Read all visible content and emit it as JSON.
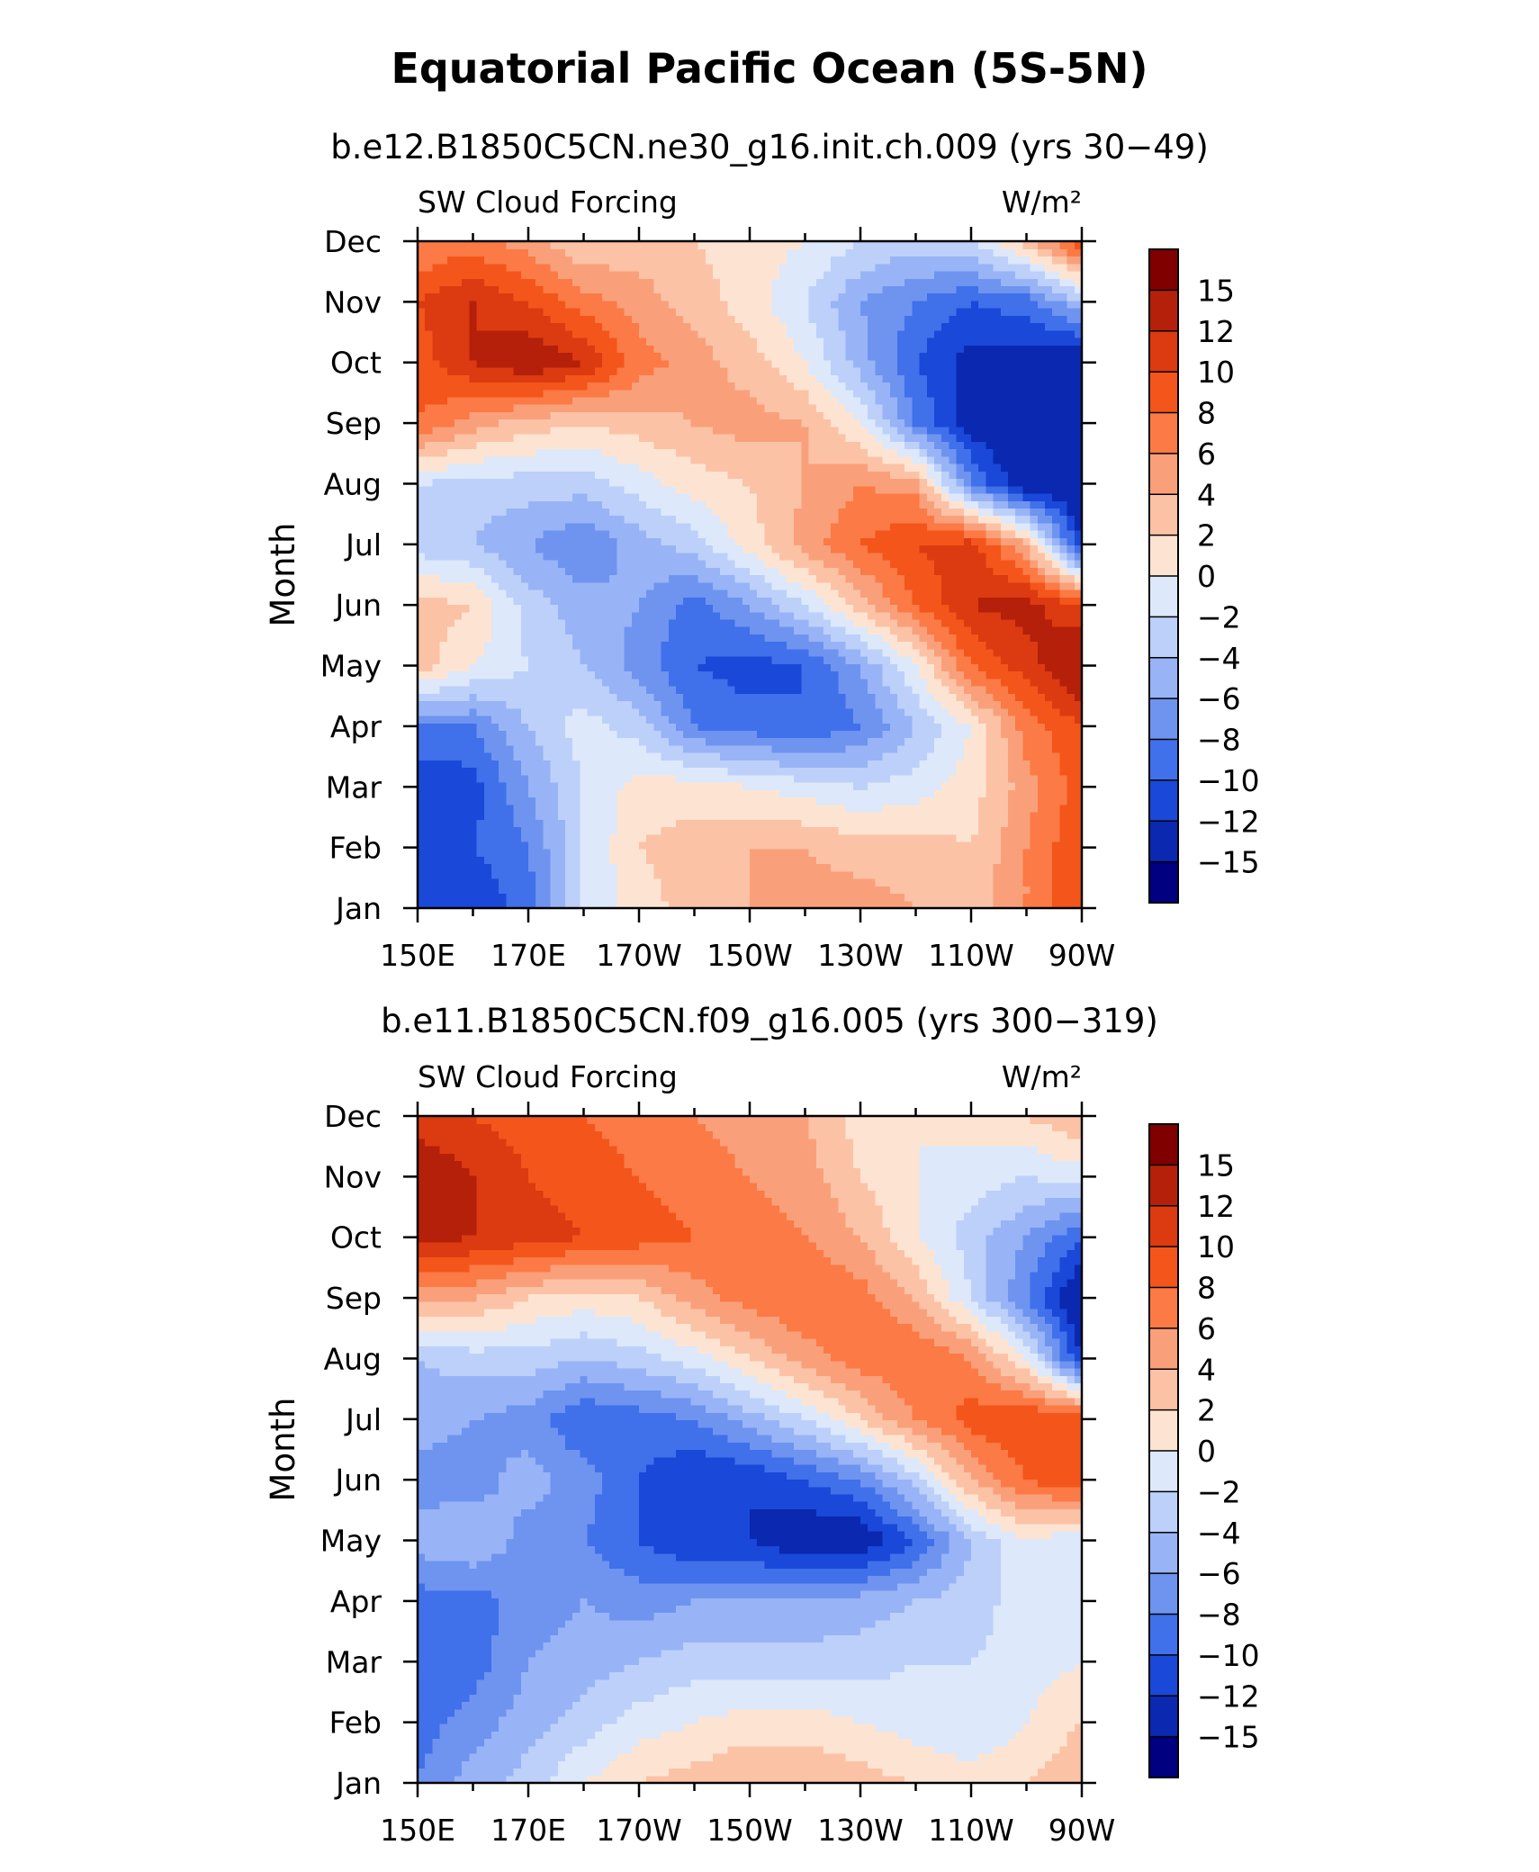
{
  "page": {
    "title": "Equatorial Pacific Ocean (5S-5N)"
  },
  "colorbar": {
    "labels": [
      "15",
      "12",
      "10",
      "8",
      "6",
      "4",
      "2",
      "0",
      "−2",
      "−4",
      "−6",
      "−8",
      "−10",
      "−12",
      "−15"
    ],
    "colors": [
      "#800000",
      "#b4200a",
      "#dc3a10",
      "#f4551a",
      "#fb7a45",
      "#f9a07b",
      "#fcc2a6",
      "#fde4d2",
      "#dde8fa",
      "#bcd0fa",
      "#98b4f6",
      "#6e94f0",
      "#4070ea",
      "#1a48d8",
      "#0a28b0",
      "#000080"
    ]
  },
  "chart_data": [
    {
      "type": "heatmap",
      "name": "panel-1",
      "case": "b.e12.B1850C5CN.ne30_g16.init.ch.009 (yrs 30−49)",
      "variable": "SW Cloud Forcing",
      "units": "W/m²",
      "xlabel": "",
      "ylabel": "Month",
      "x_ticks": [
        "150E",
        "170E",
        "170W",
        "150W",
        "130W",
        "110W",
        "90W"
      ],
      "y_ticks": [
        "Jan",
        "Feb",
        "Mar",
        "Apr",
        "May",
        "Jun",
        "Jul",
        "Aug",
        "Sep",
        "Oct",
        "Nov",
        "Dec"
      ],
      "x_range_deg_east": [
        150,
        270
      ],
      "colorbar_levels": [
        -15,
        -12,
        -10,
        -8,
        -6,
        -4,
        -2,
        0,
        2,
        4,
        6,
        8,
        10,
        12,
        15
      ],
      "longitudes_deg_east": [
        150,
        160,
        170,
        180,
        190,
        200,
        210,
        220,
        230,
        240,
        250,
        260,
        270
      ],
      "months": [
        "Jan",
        "Feb",
        "Mar",
        "Apr",
        "May",
        "Jun",
        "Jul",
        "Aug",
        "Sep",
        "Oct",
        "Nov",
        "Dec"
      ],
      "values": [
        [
          -11,
          -12,
          -9,
          -2,
          1,
          3,
          4,
          5,
          5,
          4,
          3,
          6,
          10
        ],
        [
          -12,
          -10,
          -8,
          -2,
          2,
          3,
          4,
          4,
          3,
          3,
          2,
          6,
          10
        ],
        [
          -12,
          -11,
          -6,
          -2,
          1,
          1,
          0,
          -1,
          -2,
          -1,
          1,
          5,
          9
        ],
        [
          -8,
          -8,
          -4,
          -1,
          -3,
          -8,
          -9,
          -10,
          -8,
          -4,
          0,
          7,
          10
        ],
        [
          3,
          0,
          -2,
          -4,
          -7,
          -10,
          -11,
          -10,
          -6,
          0,
          8,
          11,
          15
        ],
        [
          3,
          2,
          -3,
          -5,
          -6,
          -9,
          -6,
          -2,
          3,
          8,
          12,
          13,
          10
        ],
        [
          -3,
          -4,
          -6,
          -8,
          -5,
          -3,
          1,
          5,
          8,
          10,
          11,
          4,
          -12
        ],
        [
          -2,
          -3,
          -3,
          -3,
          -1,
          1,
          2,
          4,
          6,
          5,
          -8,
          -14,
          -15
        ],
        [
          8,
          5,
          3,
          2,
          3,
          4,
          5,
          4,
          0,
          -8,
          -13,
          -15,
          -15
        ],
        [
          9,
          12,
          14,
          12,
          7,
          5,
          3,
          0,
          -5,
          -10,
          -13,
          -13,
          -15
        ],
        [
          10,
          12,
          10,
          7,
          5,
          3,
          1,
          -2,
          -6,
          -8,
          -10,
          -9,
          -4
        ],
        [
          6,
          7,
          5,
          2,
          3,
          2,
          1,
          0,
          -2,
          -3,
          -2,
          3,
          10
        ]
      ]
    },
    {
      "type": "heatmap",
      "name": "panel-2",
      "case": "b.e11.B1850C5CN.f09_g16.005 (yrs 300−319)",
      "variable": "SW Cloud Forcing",
      "units": "W/m²",
      "xlabel": "",
      "ylabel": "Month",
      "x_ticks": [
        "150E",
        "170E",
        "170W",
        "150W",
        "130W",
        "110W",
        "90W"
      ],
      "y_ticks": [
        "Jan",
        "Feb",
        "Mar",
        "Apr",
        "May",
        "Jun",
        "Jul",
        "Aug",
        "Sep",
        "Oct",
        "Nov",
        "Dec"
      ],
      "x_range_deg_east": [
        150,
        270
      ],
      "colorbar_levels": [
        -15,
        -12,
        -10,
        -8,
        -6,
        -4,
        -2,
        0,
        2,
        4,
        6,
        8,
        10,
        12,
        15
      ],
      "longitudes_deg_east": [
        150,
        160,
        170,
        180,
        190,
        200,
        210,
        220,
        230,
        240,
        250,
        260,
        270
      ],
      "months": [
        "Jan",
        "Feb",
        "Mar",
        "Apr",
        "May",
        "Jun",
        "Jul",
        "Aug",
        "Sep",
        "Oct",
        "Nov",
        "Dec"
      ],
      "values": [
        [
          -8,
          -5,
          -3,
          0,
          2,
          3,
          4,
          4,
          3,
          2,
          1,
          2,
          4
        ],
        [
          -9,
          -7,
          -5,
          -3,
          -1,
          0,
          1,
          1,
          0,
          -1,
          -2,
          0,
          2
        ],
        [
          -10,
          -9,
          -6,
          -5,
          -4,
          -3,
          -3,
          -3,
          -3,
          -2,
          -2,
          -1,
          0
        ],
        [
          -9,
          -9,
          -7,
          -6,
          -7,
          -6,
          -6,
          -6,
          -5,
          -4,
          -3,
          -1,
          -1
        ],
        [
          -5,
          -4,
          -7,
          -8,
          -10,
          -12,
          -12,
          -14,
          -14,
          -10,
          -4,
          0,
          -2
        ],
        [
          -7,
          -7,
          -5,
          -7,
          -10,
          -12,
          -12,
          -10,
          -8,
          -3,
          4,
          8,
          10
        ],
        [
          -5,
          -6,
          -7,
          -10,
          -9,
          -8,
          -5,
          -2,
          2,
          6,
          9,
          10,
          10
        ],
        [
          -4,
          -3,
          -3,
          -4,
          -3,
          -1,
          2,
          5,
          7,
          8,
          6,
          0,
          -12
        ],
        [
          5,
          4,
          2,
          1,
          2,
          5,
          7,
          8,
          7,
          4,
          -2,
          -8,
          -15
        ],
        [
          13,
          12,
          11,
          10,
          9,
          8,
          7,
          6,
          4,
          0,
          -3,
          -6,
          -10
        ],
        [
          14,
          12,
          10,
          9,
          8,
          7,
          6,
          5,
          2,
          0,
          -1,
          -2,
          -1
        ],
        [
          11,
          10,
          9,
          8,
          7,
          6,
          5,
          4,
          1,
          0,
          1,
          2,
          4
        ]
      ]
    }
  ]
}
